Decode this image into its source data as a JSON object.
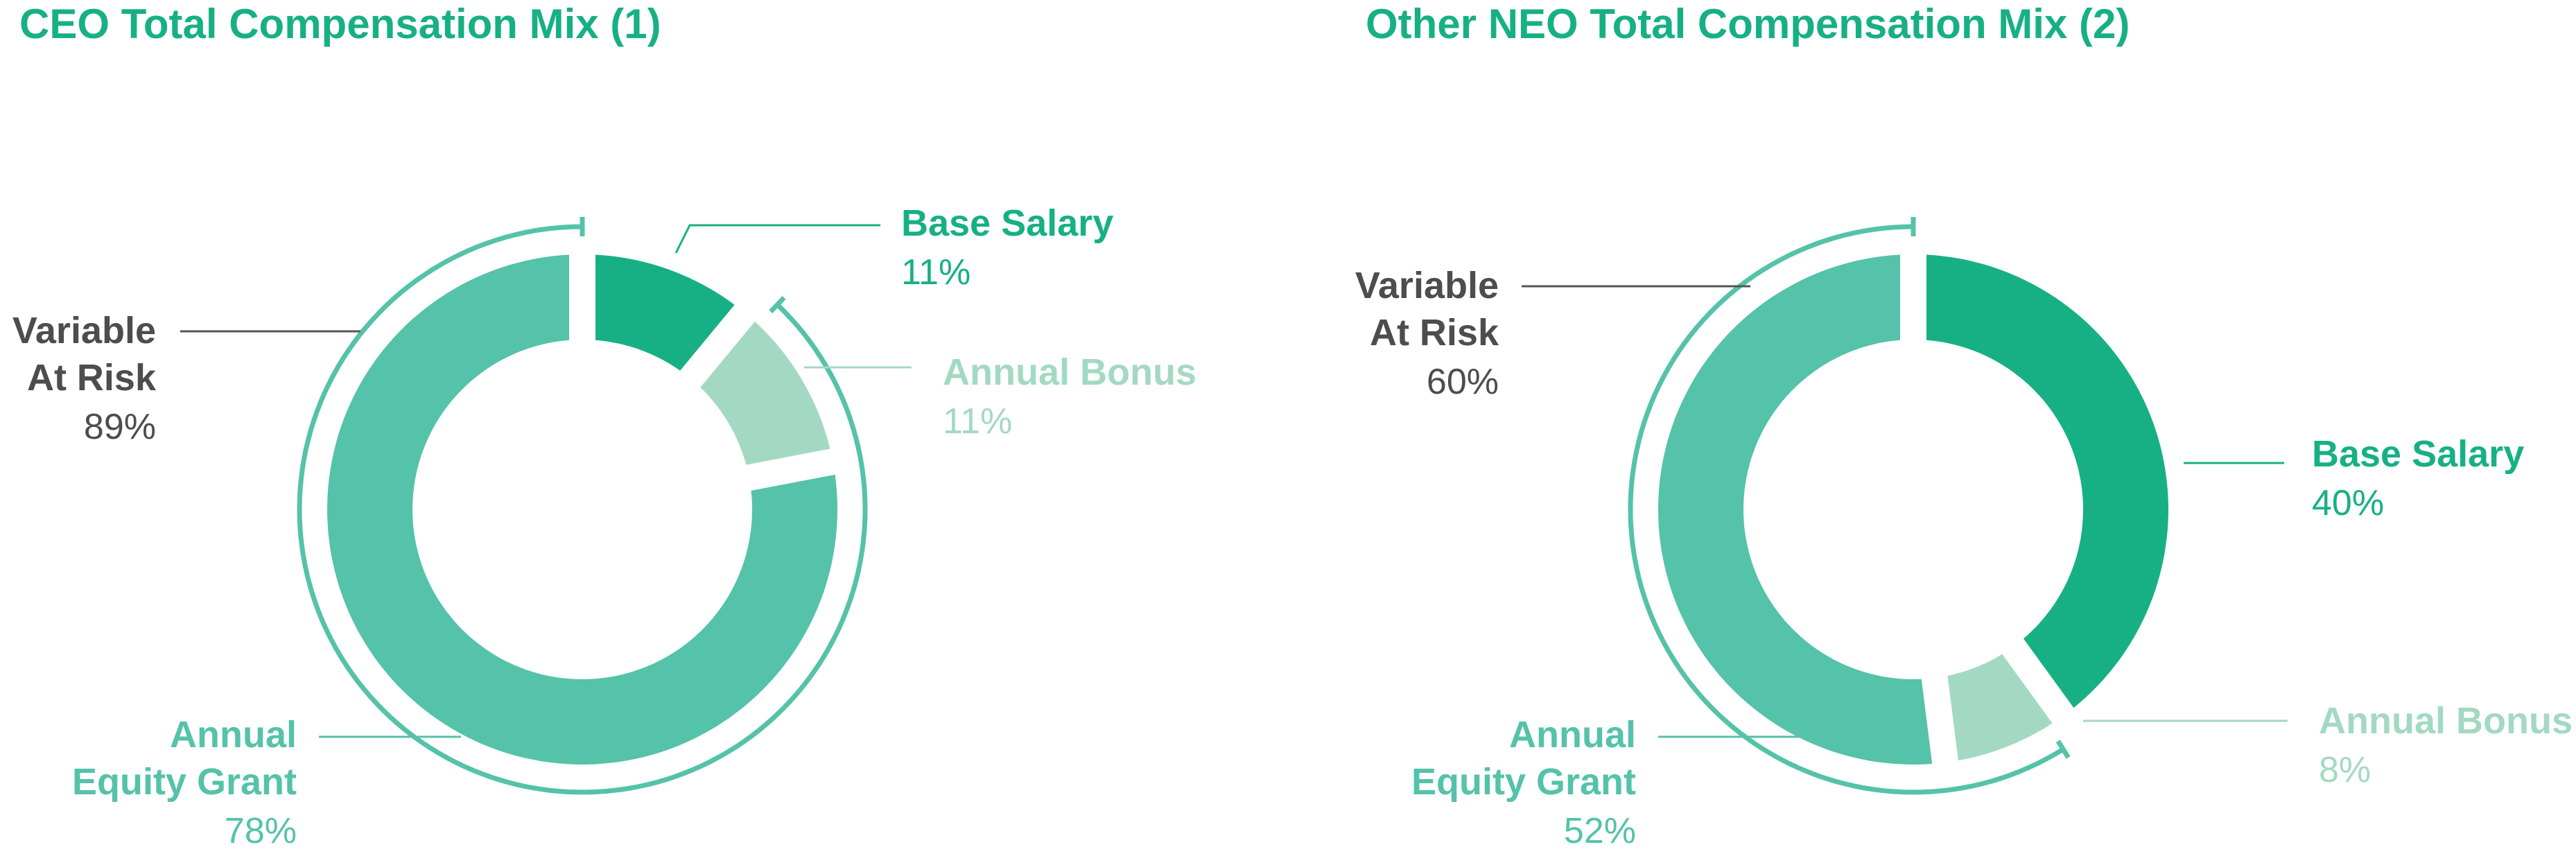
{
  "colors": {
    "title": "#17b085",
    "base_salary": "#17b085",
    "annual_bonus": "#a3d9c2",
    "equity": "#55c2aa",
    "variable_label": "#4d4d4d",
    "bracket": "#55c2aa",
    "leader": "#555555"
  },
  "chart_data": [
    {
      "type": "pie",
      "title": "CEO Total Compensation Mix (1)",
      "slices": [
        {
          "name": "Base Salary",
          "value": 11,
          "label": "11%"
        },
        {
          "name": "Annual Bonus",
          "value": 11,
          "label": "11%"
        },
        {
          "name": "Annual Equity Grant",
          "value": 78,
          "label": "78%"
        }
      ],
      "variable_at_risk": {
        "line1": "Variable",
        "line2": "At Risk",
        "value": 89,
        "label": "89%"
      },
      "annual_equity_lines": [
        "Annual",
        "Equity Grant"
      ]
    },
    {
      "type": "pie",
      "title": "Other NEO Total Compensation Mix (2)",
      "slices": [
        {
          "name": "Base Salary",
          "value": 40,
          "label": "40%"
        },
        {
          "name": "Annual Bonus",
          "value": 8,
          "label": "8%"
        },
        {
          "name": "Annual Equity Grant",
          "value": 52,
          "label": "52%"
        }
      ],
      "variable_at_risk": {
        "line1": "Variable",
        "line2": "At Risk",
        "value": 60,
        "label": "60%"
      },
      "annual_equity_lines": [
        "Annual",
        "Equity Grant"
      ]
    }
  ]
}
